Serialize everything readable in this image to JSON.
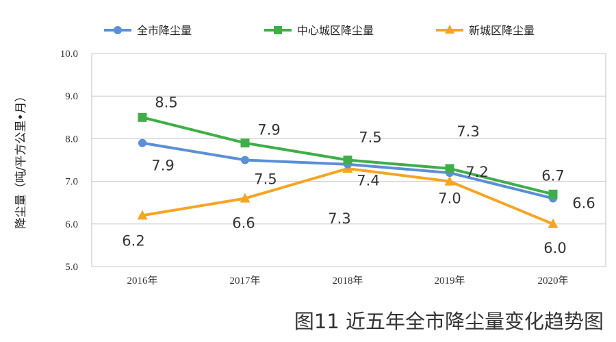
{
  "chart_data": {
    "type": "line",
    "title": "",
    "ylabel": "降尘量（吨/平方公里•月）",
    "xlabel": "",
    "categories": [
      "2016年",
      "2017年",
      "2018年",
      "2019年",
      "2020年"
    ],
    "y_ticks": [
      "10.0",
      "9.0",
      "8.0",
      "7.0",
      "6.0",
      "5.0"
    ],
    "ylim": [
      5.0,
      10.0
    ],
    "grid": "horizontal",
    "legend_position": "top",
    "series": [
      {
        "name": "全市降尘量",
        "color": "#5b8fd6",
        "marker": "circle",
        "values": [
          7.9,
          7.5,
          7.4,
          7.2,
          6.6
        ],
        "labels": [
          "7.9",
          "7.5",
          "7.4",
          "7.2",
          "6.6"
        ]
      },
      {
        "name": "中心城区降尘量",
        "color": "#3fae49",
        "marker": "square",
        "values": [
          8.5,
          7.9,
          7.5,
          7.3,
          6.7
        ],
        "labels": [
          "8.5",
          "7.9",
          "7.5",
          "7.3",
          "6.7"
        ]
      },
      {
        "name": "新城区降尘量",
        "color": "#f5a524",
        "marker": "triangle",
        "values": [
          6.2,
          6.6,
          7.3,
          7.0,
          6.0
        ],
        "labels": [
          "6.2",
          "6.6",
          "7.3",
          "7.0",
          "6.0"
        ]
      }
    ]
  },
  "caption": "图11  近五年全市降尘量变化趋势图"
}
